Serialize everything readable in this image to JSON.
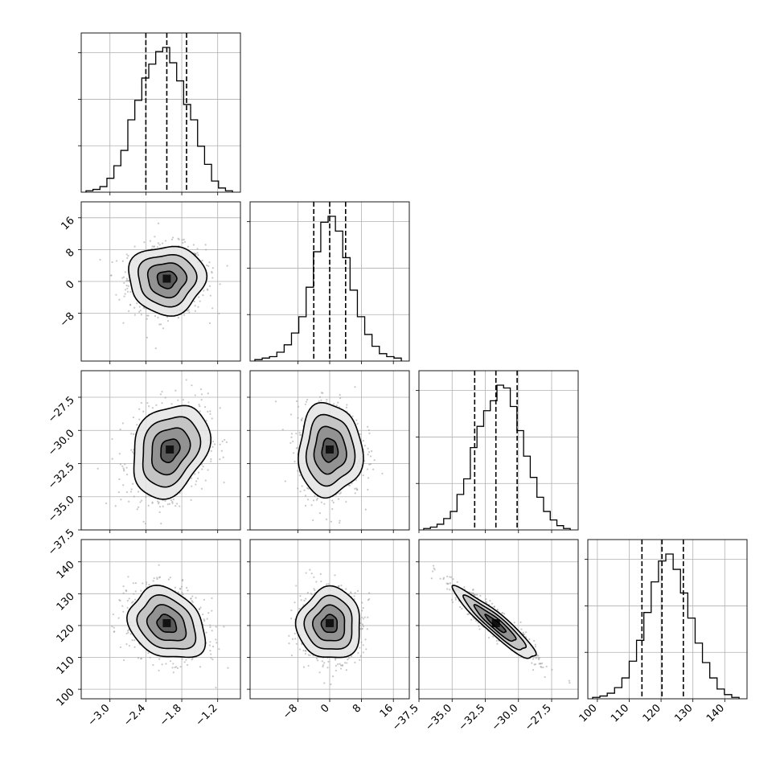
{
  "chart_data": {
    "type": "corner",
    "parameters": [
      {
        "range": [
          -3.48,
          -0.82
        ],
        "ticks": [
          -3.0,
          -2.4,
          -1.8,
          -1.2
        ],
        "tick_labels": [
          "−3.0",
          "−2.4",
          "−1.8",
          "−1.2"
        ],
        "quantiles": [
          -2.4,
          -2.05,
          -1.72
        ],
        "hist": [
          1,
          2,
          4,
          10,
          19,
          30,
          52,
          66,
          82,
          92,
          101,
          104,
          93,
          80,
          63,
          52,
          33,
          20,
          8,
          3,
          1
        ]
      },
      {
        "range": [
          -20,
          20
        ],
        "ticks": [
          -8,
          0,
          8,
          16
        ],
        "tick_labels": [
          "−8",
          "0",
          "8",
          "16"
        ],
        "quantiles": [
          -4,
          0,
          4
        ],
        "hist": [
          1,
          2,
          3,
          6,
          11,
          19,
          30,
          50,
          74,
          94,
          98,
          88,
          70,
          48,
          30,
          18,
          10,
          5,
          3,
          2
        ]
      },
      {
        "range": [
          -37.5,
          -25.5
        ],
        "ticks": [
          -37.5,
          -35.0,
          -32.5,
          -30.0,
          -27.5
        ],
        "tick_labels": [
          "−37.5",
          "−35.0",
          "−32.5",
          "−30.0",
          "−27.5"
        ],
        "quantiles": [
          -33.3,
          -31.7,
          -30.1
        ],
        "hist": [
          1,
          2,
          4,
          8,
          13,
          25,
          36,
          58,
          73,
          84,
          91,
          102,
          100,
          87,
          70,
          52,
          37,
          23,
          13,
          7,
          3,
          1
        ]
      },
      {
        "range": [
          97,
          147
        ],
        "ticks": [
          100,
          110,
          120,
          130,
          140
        ],
        "tick_labels": [
          "100",
          "110",
          "120",
          "130",
          "140"
        ],
        "quantiles": [
          114,
          120.3,
          127
        ],
        "hist": [
          1,
          2,
          4,
          8,
          15,
          27,
          42,
          62,
          84,
          99,
          104,
          93,
          76,
          58,
          40,
          26,
          15,
          7,
          3,
          1
        ]
      }
    ],
    "pairs": [
      {
        "row": 1,
        "col": 0,
        "center": [
          -2.05,
          0.5
        ],
        "sd": [
          0.32,
          4.3
        ],
        "rho": 0.0
      },
      {
        "row": 2,
        "col": 0,
        "center": [
          -2.0,
          -31.5
        ],
        "sd": [
          0.32,
          1.75
        ],
        "rho": 0.25
      },
      {
        "row": 2,
        "col": 1,
        "center": [
          0,
          -31.5
        ],
        "sd": [
          4.0,
          1.75
        ],
        "rho": 0.0
      },
      {
        "row": 3,
        "col": 0,
        "center": [
          -2.05,
          120.5
        ],
        "sd": [
          0.32,
          5.6
        ],
        "rho": -0.25
      },
      {
        "row": 3,
        "col": 1,
        "center": [
          0,
          120.5
        ],
        "sd": [
          4.0,
          5.6
        ],
        "rho": 0.0
      },
      {
        "row": 3,
        "col": 2,
        "center": [
          -31.7,
          120.5
        ],
        "sd": [
          1.55,
          5.6
        ],
        "rho": -0.93
      }
    ],
    "grid": true
  }
}
